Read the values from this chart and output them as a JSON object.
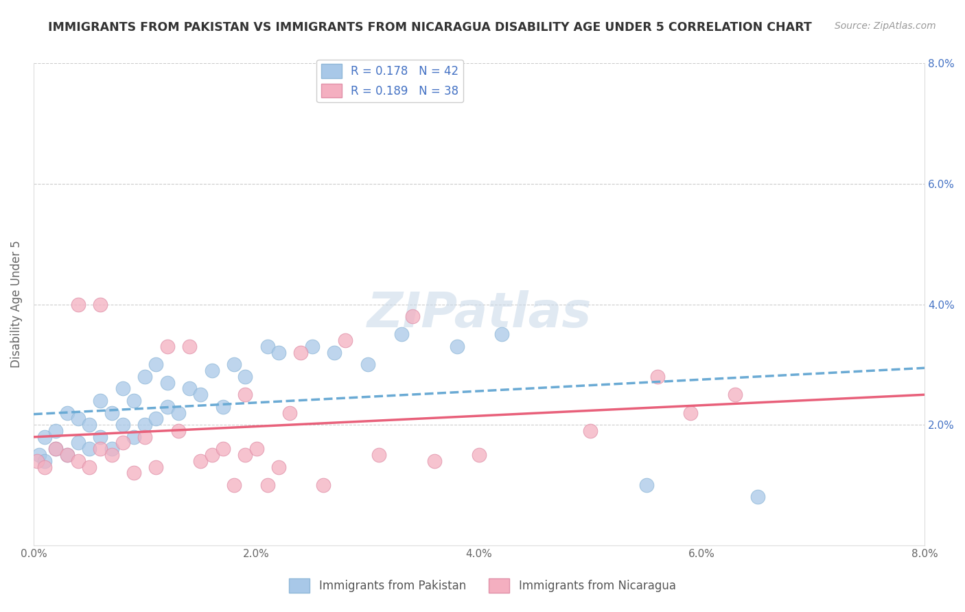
{
  "title": "IMMIGRANTS FROM PAKISTAN VS IMMIGRANTS FROM NICARAGUA DISABILITY AGE UNDER 5 CORRELATION CHART",
  "source": "Source: ZipAtlas.com",
  "ylabel": "Disability Age Under 5",
  "xlim": [
    0.0,
    0.08
  ],
  "ylim": [
    0.0,
    0.08
  ],
  "xtick_labels": [
    "0.0%",
    "2.0%",
    "4.0%",
    "6.0%",
    "8.0%"
  ],
  "xtick_vals": [
    0.0,
    0.02,
    0.04,
    0.06,
    0.08
  ],
  "ytick_labels": [
    "2.0%",
    "4.0%",
    "6.0%",
    "8.0%"
  ],
  "ytick_vals": [
    0.02,
    0.04,
    0.06,
    0.08
  ],
  "r_pakistan": 0.178,
  "n_pakistan": 42,
  "r_nicaragua": 0.189,
  "n_nicaragua": 38,
  "color_pakistan": "#a8c8e8",
  "color_nicaragua": "#f4afc0",
  "trendline_pakistan": "#6aaad4",
  "trendline_nicaragua": "#e8607a",
  "legend_label_pakistan": "Immigrants from Pakistan",
  "legend_label_nicaragua": "Immigrants from Nicaragua",
  "pakistan_x": [
    0.0005,
    0.001,
    0.001,
    0.002,
    0.002,
    0.003,
    0.003,
    0.004,
    0.004,
    0.005,
    0.005,
    0.006,
    0.006,
    0.007,
    0.007,
    0.008,
    0.008,
    0.009,
    0.009,
    0.01,
    0.01,
    0.011,
    0.011,
    0.012,
    0.012,
    0.013,
    0.014,
    0.015,
    0.016,
    0.017,
    0.018,
    0.019,
    0.021,
    0.022,
    0.025,
    0.027,
    0.03,
    0.033,
    0.038,
    0.042,
    0.055,
    0.065
  ],
  "pakistan_y": [
    0.015,
    0.014,
    0.018,
    0.016,
    0.019,
    0.015,
    0.022,
    0.017,
    0.021,
    0.016,
    0.02,
    0.018,
    0.024,
    0.016,
    0.022,
    0.02,
    0.026,
    0.018,
    0.024,
    0.02,
    0.028,
    0.021,
    0.03,
    0.023,
    0.027,
    0.022,
    0.026,
    0.025,
    0.029,
    0.023,
    0.03,
    0.028,
    0.033,
    0.032,
    0.033,
    0.032,
    0.03,
    0.035,
    0.033,
    0.035,
    0.01,
    0.008
  ],
  "nicaragua_x": [
    0.0003,
    0.001,
    0.002,
    0.003,
    0.004,
    0.004,
    0.005,
    0.006,
    0.006,
    0.007,
    0.008,
    0.009,
    0.01,
    0.011,
    0.012,
    0.013,
    0.014,
    0.015,
    0.016,
    0.017,
    0.018,
    0.019,
    0.019,
    0.02,
    0.021,
    0.022,
    0.023,
    0.024,
    0.026,
    0.028,
    0.031,
    0.034,
    0.036,
    0.04,
    0.05,
    0.056,
    0.059,
    0.063
  ],
  "nicaragua_y": [
    0.014,
    0.013,
    0.016,
    0.015,
    0.014,
    0.04,
    0.013,
    0.016,
    0.04,
    0.015,
    0.017,
    0.012,
    0.018,
    0.013,
    0.033,
    0.019,
    0.033,
    0.014,
    0.015,
    0.016,
    0.01,
    0.015,
    0.025,
    0.016,
    0.01,
    0.013,
    0.022,
    0.032,
    0.01,
    0.034,
    0.015,
    0.038,
    0.014,
    0.015,
    0.019,
    0.028,
    0.022,
    0.025
  ]
}
